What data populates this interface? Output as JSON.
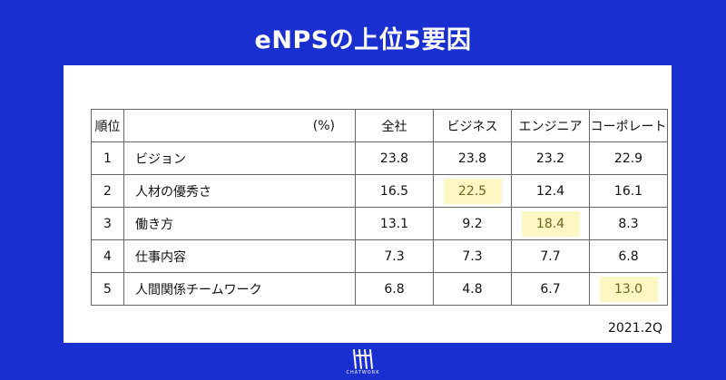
{
  "title": "eNPSの上位5要因",
  "table": {
    "header": [
      "順位",
      "(%)",
      "全社",
      "ビジネス",
      "エンジニア",
      "コーポレート"
    ],
    "rows": [
      {
        "rank": "1",
        "label": "ビジョン",
        "values": [
          "23.8",
          "23.8",
          "23.2",
          "22.9"
        ],
        "highlight": -1
      },
      {
        "rank": "2",
        "label": "人材の優秀さ",
        "values": [
          "16.5",
          "22.5",
          "12.4",
          "16.1"
        ],
        "highlight": 1
      },
      {
        "rank": "3",
        "label": "働き方",
        "values": [
          "13.1",
          "9.2",
          "18.4",
          "8.3"
        ],
        "highlight": 2
      },
      {
        "rank": "4",
        "label": "仕事内容",
        "values": [
          "7.3",
          "7.3",
          "7.7",
          "6.8"
        ],
        "highlight": -1
      },
      {
        "rank": "5",
        "label": "人間関係チームワーク",
        "values": [
          "6.8",
          "4.8",
          "6.7",
          "13.0"
        ],
        "highlight": 3
      }
    ]
  },
  "note": "2021.2Q",
  "logo_text": "CHATWORK",
  "colors": {
    "background": "#1a2fd0",
    "highlight": "#fdf7c3",
    "highlight_text": "#6f6620"
  }
}
